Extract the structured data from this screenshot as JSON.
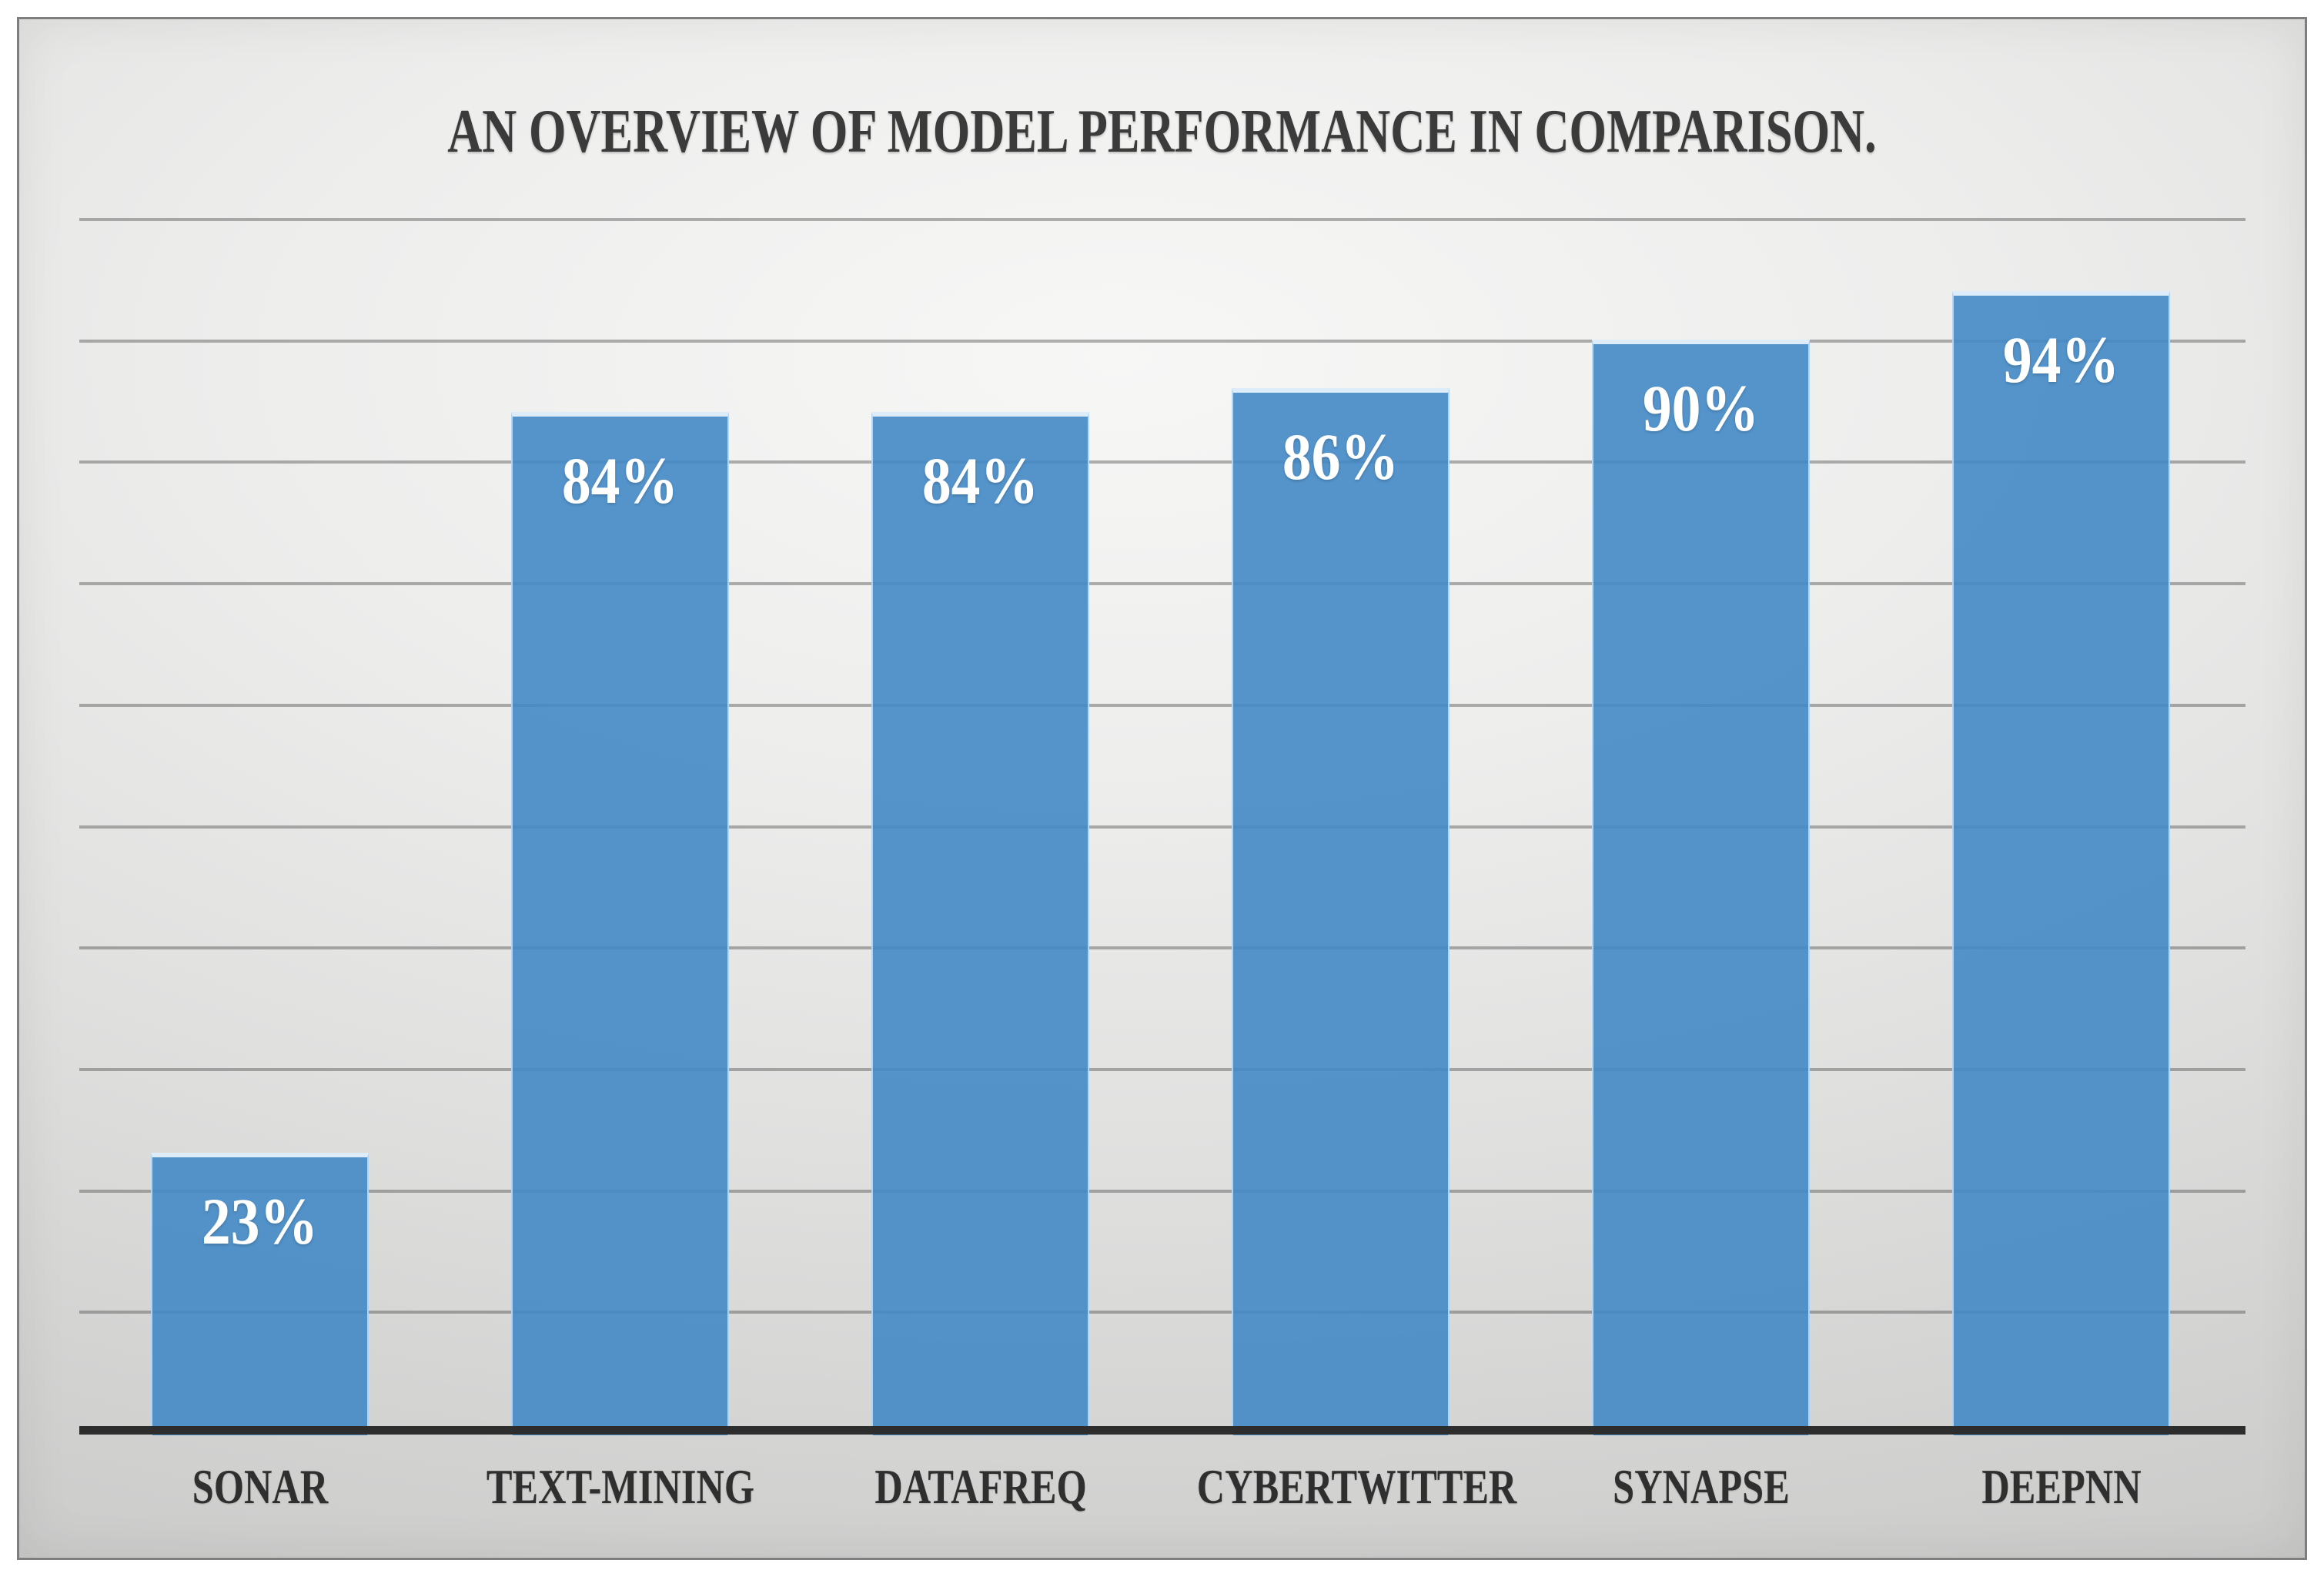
{
  "title": "AN OVERVIEW OF MODEL PERFORMANCE IN COMPARISON.",
  "chart_data": {
    "type": "bar",
    "title": "AN OVERVIEW OF MODEL PERFORMANCE IN COMPARISON.",
    "categories": [
      "SONAR",
      "TEXT-MINING",
      "DATAFREQ",
      "CYBERTWITTER",
      "SYNAPSE",
      "DEEPNN"
    ],
    "values": [
      23,
      84,
      84,
      86,
      90,
      94
    ],
    "value_labels": [
      "23%",
      "84%",
      "84%",
      "86%",
      "90%",
      "94%"
    ],
    "xlabel": "",
    "ylabel": "",
    "ylim": [
      0,
      100
    ],
    "gridline_step": 10,
    "grid": true,
    "y_tick_labels_visible": false,
    "legend": false,
    "orientation": "vertical"
  },
  "colors": {
    "bar_fill": "rgba(66, 137, 199, 0.9)",
    "bar_top_edge": "#dcedf9",
    "grid_line": "rgba(85, 85, 85, 0.45)",
    "axis_line": "#2d2d2d",
    "title_text": "#3b3b3b",
    "category_text": "#2f2f2f",
    "value_text": "#ffffff",
    "frame_border": "#7e7e7e",
    "page_background": "#ffffff"
  }
}
